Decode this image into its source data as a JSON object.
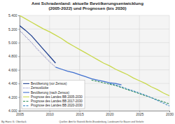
{
  "chart_data": {
    "type": "line",
    "title": "Amt Schradenland: aktuelle Bevölkerungsentwicklung (2005-2022) und Prognosen (bis 2030)",
    "annotations": [
      "By Hans G. Oberlack",
      "Quellen: Amt für Statistik Berlin-Brandenburg, Landesamt für Bauen und Verkehr"
    ],
    "x": [
      2005,
      2006,
      2007,
      2008,
      2009,
      2010,
      2011,
      2012,
      2013,
      2014,
      2015,
      2016,
      2017,
      2018,
      2019,
      2020,
      2021,
      2022,
      2023,
      2024,
      2025,
      2026,
      2027,
      2028,
      2029,
      2030
    ],
    "series": [
      {
        "name": "Bevölkerung (vor Zensus)",
        "color": "#1f3f8f",
        "line_style": "solid",
        "values": [
          5250,
          5180,
          5100,
          5000,
          4900,
          4800,
          4700,
          null,
          null,
          null,
          null,
          null,
          null,
          null,
          null,
          null,
          null,
          null,
          null,
          null,
          null,
          null,
          null,
          null,
          null,
          null
        ]
      },
      {
        "name": "Zensuslücke",
        "color": "#6f6fb0",
        "line_style": "dotted",
        "values": [
          5180,
          5090,
          5000,
          4900,
          4810,
          4720,
          4640,
          null,
          null,
          null,
          null,
          null,
          null,
          null,
          null,
          null,
          null,
          null,
          null,
          null,
          null,
          null,
          null,
          null,
          null,
          null
        ]
      },
      {
        "name": "Bevölkerung (nach Zensus)",
        "color": "#3f6fcf",
        "line_style": "solid",
        "values": [
          null,
          null,
          null,
          null,
          null,
          null,
          4640,
          4610,
          4580,
          4560,
          4530,
          4500,
          4470,
          4450,
          4430,
          4410,
          4400,
          4380,
          null,
          null,
          null,
          null,
          null,
          null,
          null,
          null
        ]
      },
      {
        "name": "Prognose des Landes BB 2005-2030",
        "color": "#c8d84a",
        "line_style": "solid",
        "values": [
          5400,
          5350,
          5300,
          5250,
          5200,
          5160,
          5110,
          5060,
          5000,
          4950,
          4900,
          4850,
          4800,
          4750,
          4700,
          4660,
          4610,
          4570,
          4530,
          4480,
          4440,
          4400,
          4350,
          4310,
          4260,
          4220
        ]
      },
      {
        "name": "Prognose des Landes BB 2017-2030",
        "color": "#2e8b57",
        "line_style": "dashed",
        "values": [
          null,
          null,
          null,
          null,
          null,
          null,
          null,
          null,
          null,
          null,
          null,
          null,
          4450,
          4430,
          4410,
          4390,
          4370,
          4340,
          4310,
          4280,
          4250,
          4220,
          4190,
          4160,
          4130,
          4100
        ]
      },
      {
        "name": "Prognose des Landes BB 2020-2030",
        "color": "#4a90c8",
        "line_style": "dashed",
        "values": [
          null,
          null,
          null,
          null,
          null,
          null,
          null,
          null,
          null,
          null,
          null,
          null,
          null,
          null,
          null,
          4400,
          4380,
          4350,
          4320,
          4290,
          4260,
          4230,
          4190,
          4150,
          4110,
          4070
        ]
      }
    ],
    "xlim": [
      2005,
      2030
    ],
    "xticks": [
      2005,
      2010,
      2015,
      2020,
      2025,
      2030
    ],
    "ylim": [
      4000,
      5400
    ],
    "yticks": [
      {
        "value": 4000,
        "label": "4.000"
      },
      {
        "value": 4200,
        "label": "4.200"
      },
      {
        "value": 4400,
        "label": "4.400"
      },
      {
        "value": 4600,
        "label": "4.600"
      },
      {
        "value": 4800,
        "label": "4.800"
      },
      {
        "value": 5000,
        "label": "5.000"
      },
      {
        "value": 5200,
        "label": "5.200"
      },
      {
        "value": 5400,
        "label": "5.400"
      }
    ],
    "grid": true,
    "legend": "bottom-left"
  }
}
